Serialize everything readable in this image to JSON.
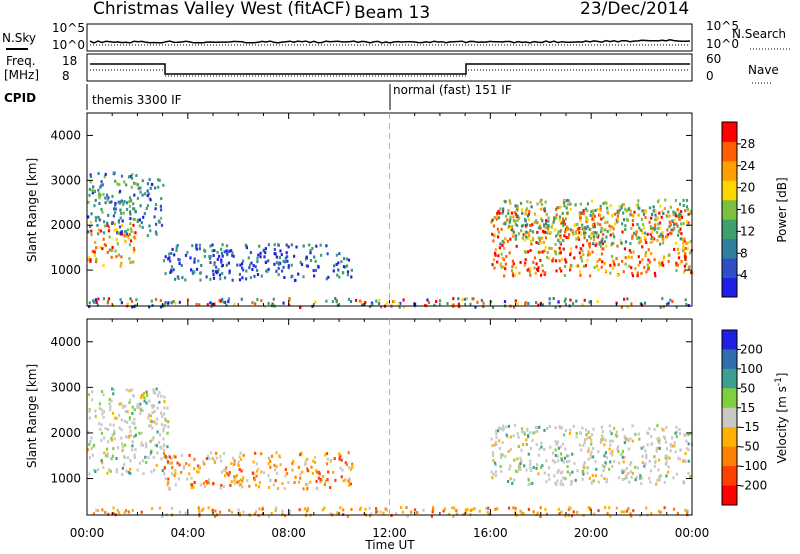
{
  "header": {
    "title": "Christmas Valley West (fitACF)",
    "beam": "Beam 13",
    "date": "23/Dec/2014"
  },
  "strip_labels": {
    "nsky": "N.Sky",
    "nsearch": "N.Search",
    "freq_line1": "Freq.",
    "freq_line2": "[MHz]",
    "nave": "Nave",
    "cpid": "CPID",
    "cpid_mode_1": "themis 3300 IF",
    "cpid_mode_2": "normal (fast) 151 IF",
    "nsky_ticks": [
      "10^5",
      "10^0"
    ],
    "nsearch_ticks": [
      "10^5",
      "10^0"
    ],
    "freq_ticks": [
      "18",
      "8"
    ],
    "nave_ticks": [
      "60",
      "0"
    ]
  },
  "colors": {
    "power_scale": [
      "#1f1fe6",
      "#2f4fc8",
      "#2f7f9f",
      "#3f9f6f",
      "#7fbf3f",
      "#ffd700",
      "#ff9f00",
      "#ff5f00",
      "#ff0000"
    ],
    "velocity_scale": [
      "#1f1fe6",
      "#2f6fb0",
      "#3f9f8f",
      "#7fcf3f",
      "#c8c8c4",
      "#ffb000",
      "#ff8000",
      "#ff4000",
      "#ff0000"
    ],
    "dashed_marker": "#b4b4b4"
  },
  "chart_data": [
    {
      "type": "heatmap",
      "panel": "power",
      "ylabel": "Slant Range [km]",
      "yticks": [
        "1000",
        "2000",
        "3000",
        "4000"
      ],
      "ylim": [
        200,
        4500
      ],
      "colorbar_label": "Power [dB]",
      "colorbar_ticks": [
        "4",
        "8",
        "12",
        "16",
        "20",
        "24",
        "28"
      ],
      "colorbar_range": [
        0,
        30
      ],
      "features": [
        {
          "t_start": 0.0,
          "t_end": 1.9,
          "range_min": 1100,
          "range_max": 2100,
          "dominant": "red-orange"
        },
        {
          "t_start": 0.0,
          "t_end": 3.0,
          "range_min": 1800,
          "range_max": 3200,
          "dominant": "green-blue"
        },
        {
          "t_start": 3.0,
          "t_end": 10.5,
          "range_min": 800,
          "range_max": 1600,
          "dominant": "blue-green"
        },
        {
          "t_start": 0.0,
          "t_end": 24.0,
          "range_min": 200,
          "range_max": 400,
          "dominant": "mixed"
        },
        {
          "t_start": 16.0,
          "t_end": 24.0,
          "range_min": 900,
          "range_max": 2400,
          "dominant": "red-orange"
        },
        {
          "t_start": 16.3,
          "t_end": 24.0,
          "range_min": 1600,
          "range_max": 2600,
          "dominant": "green"
        }
      ]
    },
    {
      "type": "heatmap",
      "panel": "velocity",
      "ylabel": "Slant Range [km]",
      "yticks": [
        "1000",
        "2000",
        "3000",
        "4000"
      ],
      "ylim": [
        200,
        4500
      ],
      "colorbar_label": "Velocity [m s^-1]",
      "colorbar_ticks": [
        "200",
        "100",
        "50",
        "15",
        "-15",
        "-50",
        "-100",
        "-200"
      ],
      "colorbar_range": [
        -250,
        250
      ],
      "x_ticks": [
        "00:00",
        "04:00",
        "08:00",
        "12:00",
        "16:00",
        "20:00",
        "00:00"
      ],
      "xlim": [
        0,
        24
      ],
      "xlabel": "Time UT",
      "features": [
        {
          "t_start": 0.0,
          "t_end": 3.2,
          "range_min": 1100,
          "range_max": 3000,
          "dominant": "gray"
        },
        {
          "t_start": 3.0,
          "t_end": 10.5,
          "range_min": 800,
          "range_max": 1600,
          "dominant": "orange-gray"
        },
        {
          "t_start": 0.0,
          "t_end": 24.0,
          "range_min": 200,
          "range_max": 400,
          "dominant": "orange"
        },
        {
          "t_start": 16.0,
          "t_end": 24.0,
          "range_min": 900,
          "range_max": 2200,
          "dominant": "gray"
        }
      ]
    }
  ],
  "vertical_markers_hours": [
    12.0
  ]
}
